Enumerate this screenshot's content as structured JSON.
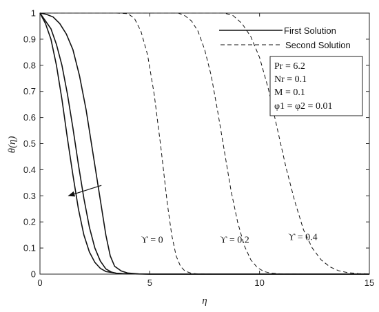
{
  "chart_data": {
    "type": "line",
    "xlabel": "η",
    "ylabel": "θ(η)",
    "xlim": [
      0,
      15
    ],
    "ylim": [
      0,
      1
    ],
    "xticks": [
      0,
      5,
      10,
      15
    ],
    "yticks": [
      0,
      0.1,
      0.2,
      0.3,
      0.4,
      0.5,
      0.6,
      0.7,
      0.8,
      0.9,
      1
    ],
    "grid": false,
    "legend": {
      "placement": "top-right",
      "entries": [
        {
          "label": "First Solution",
          "style": "solid"
        },
        {
          "label": "Second Solution",
          "style": "dashed"
        }
      ]
    },
    "parameters": [
      "Pr = 6.2",
      "Nr = 0.1",
      "M = 0.1",
      "φ1 = φ2 = 0.01"
    ],
    "annotations": [
      {
        "text": "ϒ = 0",
        "x": 4.6,
        "y": 0.12
      },
      {
        "text": "ϒ = 0.2",
        "x": 8.2,
        "y": 0.12
      },
      {
        "text": "ϒ = 0.4",
        "x": 11.3,
        "y": 0.13
      }
    ],
    "arrow": {
      "from": [
        2.8,
        0.34
      ],
      "to": [
        1.3,
        0.3
      ]
    },
    "series": [
      {
        "style": "solid",
        "points": [
          [
            0,
            1
          ],
          [
            0.25,
            0.96
          ],
          [
            0.5,
            0.9
          ],
          [
            0.75,
            0.8
          ],
          [
            1,
            0.67
          ],
          [
            1.25,
            0.52
          ],
          [
            1.5,
            0.38
          ],
          [
            1.75,
            0.25
          ],
          [
            2,
            0.15
          ],
          [
            2.25,
            0.085
          ],
          [
            2.5,
            0.045
          ],
          [
            2.75,
            0.022
          ],
          [
            3,
            0.01
          ],
          [
            3.5,
            0.003
          ],
          [
            4,
            0.001
          ],
          [
            5,
            0
          ],
          [
            15,
            0
          ]
        ]
      },
      {
        "style": "solid",
        "points": [
          [
            0,
            1
          ],
          [
            0.25,
            0.97
          ],
          [
            0.5,
            0.94
          ],
          [
            0.75,
            0.88
          ],
          [
            1,
            0.8
          ],
          [
            1.25,
            0.69
          ],
          [
            1.5,
            0.56
          ],
          [
            1.75,
            0.42
          ],
          [
            2,
            0.29
          ],
          [
            2.25,
            0.18
          ],
          [
            2.5,
            0.1
          ],
          [
            2.75,
            0.05
          ],
          [
            3,
            0.02
          ],
          [
            3.25,
            0.008
          ],
          [
            3.5,
            0.003
          ],
          [
            4,
            0.001
          ],
          [
            5,
            0
          ],
          [
            15,
            0
          ]
        ]
      },
      {
        "style": "solid",
        "points": [
          [
            0,
            1
          ],
          [
            0.3,
            0.995
          ],
          [
            0.6,
            0.985
          ],
          [
            0.9,
            0.96
          ],
          [
            1.2,
            0.92
          ],
          [
            1.5,
            0.86
          ],
          [
            1.8,
            0.76
          ],
          [
            2.1,
            0.63
          ],
          [
            2.4,
            0.47
          ],
          [
            2.7,
            0.31
          ],
          [
            3,
            0.15
          ],
          [
            3.2,
            0.07
          ],
          [
            3.4,
            0.03
          ],
          [
            3.7,
            0.012
          ],
          [
            4,
            0.004
          ],
          [
            4.5,
            0.001
          ],
          [
            5,
            0
          ],
          [
            15,
            0
          ]
        ]
      },
      {
        "style": "dashed",
        "points": [
          [
            0,
            1
          ],
          [
            3.5,
            1
          ],
          [
            4,
            0.998
          ],
          [
            4.3,
            0.98
          ],
          [
            4.6,
            0.93
          ],
          [
            4.9,
            0.84
          ],
          [
            5.2,
            0.69
          ],
          [
            5.5,
            0.49
          ],
          [
            5.8,
            0.27
          ],
          [
            6,
            0.15
          ],
          [
            6.2,
            0.07
          ],
          [
            6.4,
            0.03
          ],
          [
            6.6,
            0.012
          ],
          [
            6.9,
            0.003
          ],
          [
            7.2,
            0.001
          ],
          [
            8,
            0
          ],
          [
            15,
            0
          ]
        ]
      },
      {
        "style": "dashed",
        "points": [
          [
            0,
            1
          ],
          [
            6.3,
            1
          ],
          [
            6.6,
            0.99
          ],
          [
            6.9,
            0.97
          ],
          [
            7.2,
            0.93
          ],
          [
            7.5,
            0.86
          ],
          [
            7.8,
            0.76
          ],
          [
            8.1,
            0.62
          ],
          [
            8.4,
            0.47
          ],
          [
            8.7,
            0.32
          ],
          [
            9,
            0.2
          ],
          [
            9.3,
            0.11
          ],
          [
            9.6,
            0.055
          ],
          [
            9.9,
            0.025
          ],
          [
            10.2,
            0.01
          ],
          [
            10.5,
            0.004
          ],
          [
            11,
            0.001
          ],
          [
            12,
            0
          ],
          [
            15,
            0
          ]
        ]
      },
      {
        "style": "dashed",
        "points": [
          [
            0,
            1
          ],
          [
            8.4,
            1
          ],
          [
            8.8,
            0.99
          ],
          [
            9.2,
            0.96
          ],
          [
            9.6,
            0.91
          ],
          [
            10,
            0.83
          ],
          [
            10.4,
            0.71
          ],
          [
            10.8,
            0.56
          ],
          [
            11.2,
            0.41
          ],
          [
            11.6,
            0.28
          ],
          [
            12,
            0.17
          ],
          [
            12.4,
            0.1
          ],
          [
            12.8,
            0.055
          ],
          [
            13.2,
            0.028
          ],
          [
            13.6,
            0.013
          ],
          [
            14,
            0.006
          ],
          [
            14.5,
            0.002
          ],
          [
            15,
            0.001
          ]
        ]
      }
    ]
  }
}
